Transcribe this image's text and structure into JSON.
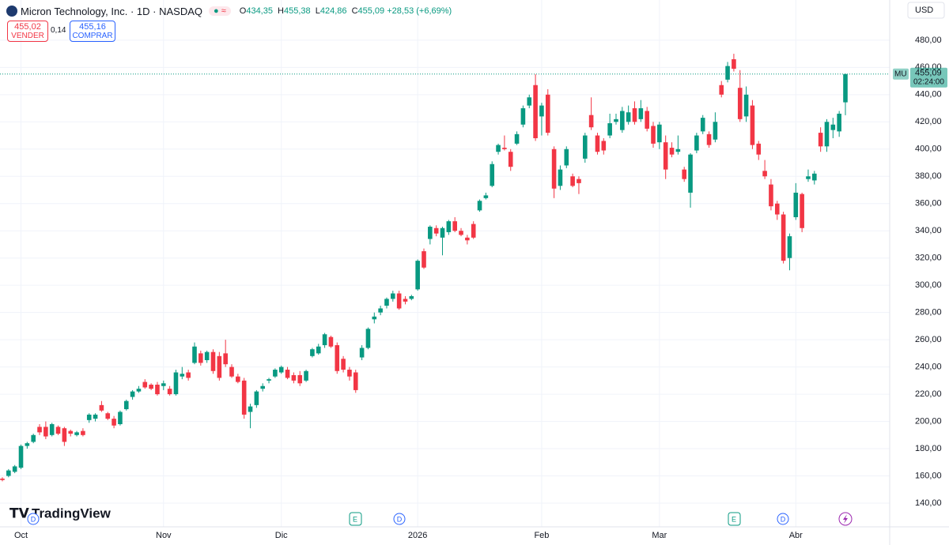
{
  "header": {
    "title": "Micron Technology, Inc. · 1D · NASDAQ",
    "o_key": "O",
    "o": "434,35",
    "h_key": "H",
    "h": "455,38",
    "l_key": "L",
    "l": "424,86",
    "c_key": "C",
    "c": "455,09",
    "change": "+28,53 (+6,69%)"
  },
  "trade": {
    "sell_price": "455,02",
    "sell": "VENDER",
    "spread": "0,14",
    "buy_price": "455,16",
    "buy": "COMPRAR"
  },
  "currency": "USD",
  "brand": "TradingView",
  "events": [
    "D",
    "E",
    "D",
    "E",
    "D"
  ],
  "chart_data": {
    "type": "candlestick",
    "symbol": "MU",
    "last_price_label": "455,09",
    "countdown": "02:24:00",
    "up_color": "#089981",
    "down_color": "#f23645",
    "grid": true,
    "ylim": [
      122.6,
      509.5
    ],
    "yticks": [
      {
        "value": 140,
        "label": "140,00"
      },
      {
        "value": 160,
        "label": "160,00"
      },
      {
        "value": 180,
        "label": "180,00"
      },
      {
        "value": 200,
        "label": "200,00"
      },
      {
        "value": 220,
        "label": "220,00"
      },
      {
        "value": 240,
        "label": "240,00"
      },
      {
        "value": 260,
        "label": "260,00"
      },
      {
        "value": 280,
        "label": "280,00"
      },
      {
        "value": 300,
        "label": "300,00"
      },
      {
        "value": 320,
        "label": "320,00"
      },
      {
        "value": 340,
        "label": "340,00"
      },
      {
        "value": 360,
        "label": "360,00"
      },
      {
        "value": 380,
        "label": "380,00"
      },
      {
        "value": 400,
        "label": "400,00"
      },
      {
        "value": 420,
        "label": "420,00"
      },
      {
        "value": 440,
        "label": "440,00"
      },
      {
        "value": 460,
        "label": "460,00"
      },
      {
        "value": 480,
        "label": "480,00"
      }
    ],
    "categories": [
      null,
      null,
      null,
      "Oct",
      null,
      null,
      null,
      null,
      null,
      null,
      null,
      null,
      null,
      null,
      null,
      null,
      null,
      null,
      null,
      null,
      null,
      null,
      null,
      null,
      null,
      null,
      "Nov",
      null,
      null,
      null,
      null,
      null,
      null,
      null,
      null,
      null,
      null,
      null,
      null,
      null,
      null,
      null,
      null,
      null,
      null,
      "Dic",
      null,
      null,
      null,
      null,
      null,
      null,
      null,
      null,
      null,
      null,
      null,
      null,
      null,
      null,
      null,
      null,
      null,
      null,
      null,
      null,
      null,
      "2026",
      null,
      null,
      null,
      null,
      null,
      null,
      null,
      null,
      null,
      null,
      null,
      null,
      null,
      null,
      null,
      null,
      null,
      null,
      null,
      "Feb",
      null,
      null,
      null,
      null,
      null,
      null,
      null,
      null,
      null,
      null,
      null,
      null,
      null,
      null,
      null,
      null,
      null,
      null,
      "Mar",
      null,
      null,
      null,
      null,
      null,
      null,
      null,
      null,
      null,
      null,
      null,
      null,
      null,
      null,
      null,
      null,
      null,
      null,
      null,
      null,
      null,
      "Abr",
      null,
      null,
      null,
      null,
      null,
      null,
      null,
      null
    ],
    "ohlc": [
      [
        158,
        159,
        156,
        157
      ],
      [
        160,
        165,
        159,
        164
      ],
      [
        163,
        168,
        162,
        167
      ],
      [
        166,
        183,
        165,
        182
      ],
      [
        182,
        185,
        180,
        184
      ],
      [
        185,
        191,
        184,
        190
      ],
      [
        196,
        198,
        190,
        192
      ],
      [
        196,
        200,
        187,
        189
      ],
      [
        190,
        199,
        189,
        198
      ],
      [
        196,
        197,
        190,
        191
      ],
      [
        195,
        196,
        182,
        185
      ],
      [
        193,
        194,
        189,
        191
      ],
      [
        190,
        193,
        189,
        192
      ],
      [
        193,
        195,
        189,
        190
      ],
      [
        201,
        206,
        199,
        205
      ],
      [
        202,
        206,
        200,
        205
      ],
      [
        212,
        215,
        207,
        208
      ],
      [
        206,
        207,
        201,
        202
      ],
      [
        202,
        204,
        195,
        197
      ],
      [
        198,
        208,
        197,
        207
      ],
      [
        209,
        216,
        208,
        215
      ],
      [
        218,
        223,
        216,
        222
      ],
      [
        222,
        226,
        221,
        224
      ],
      [
        229,
        231,
        224,
        225
      ],
      [
        227,
        228,
        223,
        224
      ],
      [
        227,
        229,
        219,
        220
      ],
      [
        226,
        230,
        223,
        228
      ],
      [
        224,
        226,
        219,
        220
      ],
      [
        220,
        238,
        219,
        236
      ],
      [
        233,
        240,
        231,
        235
      ],
      [
        236,
        238,
        230,
        232
      ],
      [
        243,
        258,
        242,
        255
      ],
      [
        250,
        252,
        241,
        243
      ],
      [
        245,
        252,
        243,
        251
      ],
      [
        251,
        253,
        235,
        237
      ],
      [
        248,
        251,
        230,
        232
      ],
      [
        250,
        260,
        240,
        242
      ],
      [
        240,
        242,
        232,
        233
      ],
      [
        233,
        235,
        228,
        229
      ],
      [
        230,
        232,
        202,
        205
      ],
      [
        207,
        213,
        195,
        211
      ],
      [
        212,
        223,
        210,
        222
      ],
      [
        224,
        228,
        222,
        226
      ],
      [
        230,
        232,
        228,
        231
      ],
      [
        233,
        239,
        232,
        238
      ],
      [
        236,
        241,
        235,
        240
      ],
      [
        238,
        240,
        231,
        232
      ],
      [
        234,
        236,
        228,
        230
      ],
      [
        234,
        237,
        226,
        228
      ],
      [
        230,
        238,
        229,
        237
      ],
      [
        248,
        254,
        247,
        253
      ],
      [
        250,
        257,
        249,
        255
      ],
      [
        256,
        265,
        254,
        264
      ],
      [
        262,
        263,
        254,
        255
      ],
      [
        256,
        258,
        235,
        237
      ],
      [
        246,
        248,
        236,
        238
      ],
      [
        238,
        240,
        230,
        233
      ],
      [
        236,
        238,
        221,
        223
      ],
      [
        247,
        256,
        245,
        254
      ],
      [
        254,
        269,
        253,
        268
      ],
      [
        275,
        280,
        272,
        277
      ],
      [
        280,
        285,
        278,
        283
      ],
      [
        285,
        291,
        283,
        290
      ],
      [
        290,
        296,
        288,
        294
      ],
      [
        294,
        296,
        282,
        283
      ],
      [
        290,
        292,
        286,
        288
      ],
      [
        290,
        293,
        289,
        292
      ],
      [
        297,
        319,
        296,
        318
      ],
      [
        325,
        327,
        312,
        313
      ],
      [
        334,
        344,
        330,
        343
      ],
      [
        342,
        344,
        336,
        338
      ],
      [
        335,
        343,
        322,
        342
      ],
      [
        339,
        348,
        337,
        347
      ],
      [
        347,
        350,
        339,
        340
      ],
      [
        340,
        342,
        336,
        337
      ],
      [
        335,
        337,
        330,
        333
      ],
      [
        345,
        347,
        334,
        335
      ],
      [
        355,
        363,
        354,
        362
      ],
      [
        364,
        368,
        363,
        366
      ],
      [
        373,
        391,
        372,
        389
      ],
      [
        398,
        404,
        396,
        403
      ],
      [
        401,
        410,
        399,
        400
      ],
      [
        398,
        400,
        384,
        387
      ],
      [
        404,
        413,
        403,
        411
      ],
      [
        418,
        432,
        416,
        430
      ],
      [
        432,
        440,
        430,
        438
      ],
      [
        447,
        455,
        406,
        408
      ],
      [
        424,
        434,
        410,
        432
      ],
      [
        440,
        444,
        410,
        412
      ],
      [
        400,
        402,
        364,
        371
      ],
      [
        373,
        388,
        370,
        385
      ],
      [
        388,
        402,
        386,
        400
      ],
      [
        380,
        382,
        372,
        373
      ],
      [
        378,
        380,
        367,
        375
      ],
      [
        393,
        412,
        390,
        410
      ],
      [
        425,
        438,
        414,
        416
      ],
      [
        410,
        412,
        396,
        398
      ],
      [
        406,
        408,
        396,
        399
      ],
      [
        410,
        426,
        408,
        419
      ],
      [
        420,
        426,
        418,
        422
      ],
      [
        414,
        431,
        412,
        428
      ],
      [
        420,
        432,
        418,
        427
      ],
      [
        430,
        435,
        418,
        420
      ],
      [
        422,
        436,
        420,
        430
      ],
      [
        428,
        431,
        413,
        415
      ],
      [
        417,
        420,
        401,
        404
      ],
      [
        405,
        420,
        400,
        418
      ],
      [
        405,
        410,
        378,
        385
      ],
      [
        401,
        405,
        394,
        396
      ],
      [
        398,
        410,
        396,
        400
      ],
      [
        385,
        387,
        376,
        378
      ],
      [
        368,
        397,
        357,
        396
      ],
      [
        399,
        412,
        397,
        410
      ],
      [
        413,
        425,
        411,
        423
      ],
      [
        411,
        413,
        401,
        403
      ],
      [
        407,
        427,
        405,
        420
      ],
      [
        447,
        450,
        438,
        440
      ],
      [
        451,
        464,
        449,
        461
      ],
      [
        466,
        470,
        457,
        459
      ],
      [
        445,
        458,
        420,
        422
      ],
      [
        424,
        446,
        420,
        440
      ],
      [
        432,
        436,
        400,
        403
      ],
      [
        404,
        406,
        392,
        396
      ],
      [
        384,
        392,
        378,
        380
      ],
      [
        374,
        378,
        355,
        358
      ],
      [
        360,
        362,
        348,
        352
      ],
      [
        352,
        354,
        316,
        318
      ],
      [
        320,
        338,
        311,
        336
      ],
      [
        350,
        375,
        348,
        368
      ],
      [
        367,
        368,
        339,
        342
      ],
      [
        378,
        385,
        376,
        380
      ],
      [
        377,
        384,
        374,
        382
      ],
      [
        412,
        416,
        398,
        402
      ],
      [
        402,
        422,
        398,
        420
      ],
      [
        414,
        423,
        408,
        418
      ],
      [
        413,
        428,
        409,
        426
      ],
      [
        434.35,
        455.38,
        424.86,
        455.09
      ]
    ]
  }
}
